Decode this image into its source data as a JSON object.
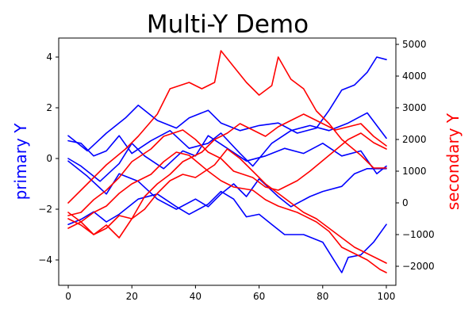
{
  "chart_data": {
    "type": "line",
    "title": "Multi-Y Demo",
    "xlabel": "",
    "x_ticks": [
      0,
      20,
      40,
      60,
      80,
      100
    ],
    "xlim": [
      -3,
      103
    ],
    "grid": false,
    "legend": "none",
    "primary_axis": {
      "label": "primary Y",
      "color": "#0000ff",
      "ylim": [
        -5.0,
        4.75
      ],
      "ticks": [
        -4,
        -2,
        0,
        2,
        4
      ],
      "tick_labels": [
        "−4",
        "−2",
        "0",
        "2",
        "4"
      ]
    },
    "secondary_axis": {
      "label": "secondary Y",
      "color": "#ff0000",
      "ylim": [
        -2600,
        5200
      ],
      "ticks": [
        -2000,
        -1000,
        0,
        1000,
        2000,
        3000,
        4000,
        5000
      ],
      "tick_labels": [
        "−2000",
        "−1000",
        "0",
        "1000",
        "2000",
        "3000",
        "4000",
        "5000"
      ]
    },
    "series": [
      {
        "axis": "primary",
        "color": "#0000ff",
        "points": [
          [
            0,
            0.9
          ],
          [
            6,
            0.3
          ],
          [
            12,
            1.0
          ],
          [
            18,
            1.6
          ],
          [
            22,
            2.1
          ],
          [
            28,
            1.5
          ],
          [
            34,
            1.2
          ],
          [
            38,
            1.6
          ],
          [
            44,
            1.9
          ],
          [
            48,
            1.4
          ],
          [
            54,
            1.1
          ],
          [
            60,
            1.3
          ],
          [
            66,
            1.4
          ],
          [
            72,
            1.0
          ],
          [
            78,
            1.2
          ],
          [
            82,
            1.9
          ],
          [
            86,
            2.7
          ],
          [
            90,
            2.9
          ],
          [
            94,
            3.4
          ],
          [
            97,
            4.0
          ],
          [
            100,
            3.9
          ]
        ]
      },
      {
        "axis": "primary",
        "color": "#0000ff",
        "points": [
          [
            0,
            0.7
          ],
          [
            4,
            0.6
          ],
          [
            8,
            0.1
          ],
          [
            12,
            0.3
          ],
          [
            16,
            0.9
          ],
          [
            20,
            0.2
          ],
          [
            26,
            0.7
          ],
          [
            32,
            1.1
          ],
          [
            38,
            0.4
          ],
          [
            44,
            0.6
          ],
          [
            48,
            1.0
          ],
          [
            54,
            0.2
          ],
          [
            58,
            -0.3
          ],
          [
            64,
            0.6
          ],
          [
            70,
            1.1
          ],
          [
            76,
            1.3
          ],
          [
            82,
            1.1
          ],
          [
            88,
            1.4
          ],
          [
            94,
            1.8
          ],
          [
            100,
            0.8
          ]
        ]
      },
      {
        "axis": "primary",
        "color": "#0000ff",
        "points": [
          [
            0,
            0.0
          ],
          [
            4,
            -0.3
          ],
          [
            10,
            -0.9
          ],
          [
            16,
            -0.2
          ],
          [
            20,
            0.6
          ],
          [
            24,
            0.1
          ],
          [
            30,
            -0.4
          ],
          [
            36,
            0.3
          ],
          [
            40,
            0.1
          ],
          [
            44,
            0.9
          ],
          [
            50,
            0.4
          ],
          [
            56,
            -0.1
          ],
          [
            62,
            0.1
          ],
          [
            68,
            0.4
          ],
          [
            74,
            0.2
          ],
          [
            80,
            0.6
          ],
          [
            86,
            0.1
          ],
          [
            92,
            0.3
          ],
          [
            97,
            -0.6
          ],
          [
            100,
            -0.3
          ]
        ]
      },
      {
        "axis": "primary",
        "color": "#0000ff",
        "points": [
          [
            0,
            -0.1
          ],
          [
            6,
            -0.7
          ],
          [
            12,
            -1.4
          ],
          [
            16,
            -0.6
          ],
          [
            22,
            -0.9
          ],
          [
            28,
            -1.6
          ],
          [
            34,
            -2.0
          ],
          [
            40,
            -1.6
          ],
          [
            44,
            -1.9
          ],
          [
            48,
            -1.4
          ],
          [
            52,
            -1.0
          ],
          [
            56,
            -1.5
          ],
          [
            60,
            -0.8
          ],
          [
            66,
            -1.5
          ],
          [
            70,
            -1.9
          ],
          [
            76,
            -1.5
          ],
          [
            80,
            -1.3
          ],
          [
            86,
            -1.1
          ],
          [
            90,
            -0.6
          ],
          [
            94,
            -0.4
          ],
          [
            100,
            -0.4
          ]
        ]
      },
      {
        "axis": "primary",
        "color": "#0000ff",
        "points": [
          [
            0,
            -2.6
          ],
          [
            4,
            -2.4
          ],
          [
            8,
            -2.1
          ],
          [
            12,
            -2.5
          ],
          [
            16,
            -2.2
          ],
          [
            22,
            -1.6
          ],
          [
            28,
            -1.4
          ],
          [
            34,
            -1.9
          ],
          [
            38,
            -2.2
          ],
          [
            44,
            -1.8
          ],
          [
            48,
            -1.3
          ],
          [
            52,
            -1.6
          ],
          [
            56,
            -2.3
          ],
          [
            60,
            -2.2
          ],
          [
            64,
            -2.6
          ],
          [
            68,
            -3.0
          ],
          [
            74,
            -3.0
          ],
          [
            80,
            -3.3
          ],
          [
            84,
            -4.1
          ],
          [
            86,
            -4.5
          ],
          [
            88,
            -3.9
          ],
          [
            92,
            -3.8
          ],
          [
            96,
            -3.3
          ],
          [
            100,
            -2.6
          ]
        ]
      },
      {
        "axis": "secondary",
        "color": "#ff0000",
        "points": [
          [
            0,
            -500
          ],
          [
            4,
            -700
          ],
          [
            8,
            -1000
          ],
          [
            12,
            -800
          ],
          [
            16,
            -400
          ],
          [
            20,
            -500
          ],
          [
            24,
            200
          ],
          [
            28,
            600
          ],
          [
            32,
            900
          ],
          [
            36,
            1300
          ],
          [
            42,
            1600
          ],
          [
            46,
            2000
          ],
          [
            50,
            2200
          ],
          [
            54,
            2500
          ],
          [
            58,
            2300
          ],
          [
            62,
            2100
          ],
          [
            66,
            2400
          ],
          [
            70,
            2600
          ],
          [
            74,
            2800
          ],
          [
            78,
            2600
          ],
          [
            84,
            2300
          ],
          [
            88,
            2400
          ],
          [
            92,
            2500
          ],
          [
            96,
            2100
          ],
          [
            100,
            1800
          ]
        ]
      },
      {
        "axis": "secondary",
        "color": "#ff0000",
        "points": [
          [
            0,
            0
          ],
          [
            6,
            600
          ],
          [
            12,
            1200
          ],
          [
            18,
            1700
          ],
          [
            22,
            2100
          ],
          [
            28,
            2800
          ],
          [
            32,
            3600
          ],
          [
            38,
            3800
          ],
          [
            42,
            3600
          ],
          [
            46,
            3800
          ],
          [
            48,
            4800
          ],
          [
            52,
            4300
          ],
          [
            56,
            3800
          ],
          [
            60,
            3400
          ],
          [
            64,
            3700
          ],
          [
            66,
            4600
          ],
          [
            70,
            3900
          ],
          [
            74,
            3600
          ],
          [
            78,
            2900
          ],
          [
            82,
            2500
          ],
          [
            86,
            2000
          ],
          [
            92,
            1500
          ],
          [
            96,
            1100
          ],
          [
            100,
            1100
          ]
        ]
      },
      {
        "axis": "secondary",
        "color": "#ff0000",
        "points": [
          [
            0,
            -400
          ],
          [
            4,
            -300
          ],
          [
            8,
            100
          ],
          [
            12,
            400
          ],
          [
            16,
            800
          ],
          [
            20,
            1300
          ],
          [
            26,
            1700
          ],
          [
            30,
            2100
          ],
          [
            36,
            2300
          ],
          [
            40,
            2000
          ],
          [
            44,
            1600
          ],
          [
            48,
            1400
          ],
          [
            52,
            1000
          ],
          [
            58,
            800
          ],
          [
            62,
            500
          ],
          [
            66,
            400
          ],
          [
            72,
            700
          ],
          [
            76,
            1000
          ],
          [
            82,
            1500
          ],
          [
            88,
            2000
          ],
          [
            92,
            2200
          ],
          [
            96,
            1900
          ],
          [
            100,
            1700
          ]
        ]
      },
      {
        "axis": "secondary",
        "color": "#ff0000",
        "points": [
          [
            0,
            -800
          ],
          [
            4,
            -600
          ],
          [
            8,
            -300
          ],
          [
            12,
            -100
          ],
          [
            16,
            300
          ],
          [
            20,
            600
          ],
          [
            26,
            900
          ],
          [
            30,
            1300
          ],
          [
            34,
            1600
          ],
          [
            38,
            1500
          ],
          [
            44,
            1000
          ],
          [
            48,
            700
          ],
          [
            52,
            500
          ],
          [
            58,
            400
          ],
          [
            62,
            100
          ],
          [
            66,
            -100
          ],
          [
            72,
            -300
          ],
          [
            78,
            -600
          ],
          [
            82,
            -900
          ],
          [
            86,
            -1400
          ],
          [
            90,
            -1600
          ],
          [
            94,
            -1800
          ],
          [
            98,
            -2100
          ],
          [
            100,
            -2200
          ]
        ]
      },
      {
        "axis": "secondary",
        "color": "#ff0000",
        "points": [
          [
            0,
            -300
          ],
          [
            4,
            -600
          ],
          [
            8,
            -1000
          ],
          [
            12,
            -700
          ],
          [
            16,
            -1100
          ],
          [
            20,
            -500
          ],
          [
            24,
            -200
          ],
          [
            28,
            300
          ],
          [
            32,
            700
          ],
          [
            36,
            900
          ],
          [
            40,
            800
          ],
          [
            46,
            1200
          ],
          [
            50,
            1700
          ],
          [
            54,
            1400
          ],
          [
            58,
            1000
          ],
          [
            62,
            600
          ],
          [
            66,
            300
          ],
          [
            70,
            0
          ],
          [
            74,
            -300
          ],
          [
            78,
            -500
          ],
          [
            82,
            -800
          ],
          [
            86,
            -1100
          ],
          [
            90,
            -1400
          ],
          [
            94,
            -1600
          ],
          [
            98,
            -1800
          ],
          [
            100,
            -1900
          ]
        ]
      }
    ]
  }
}
